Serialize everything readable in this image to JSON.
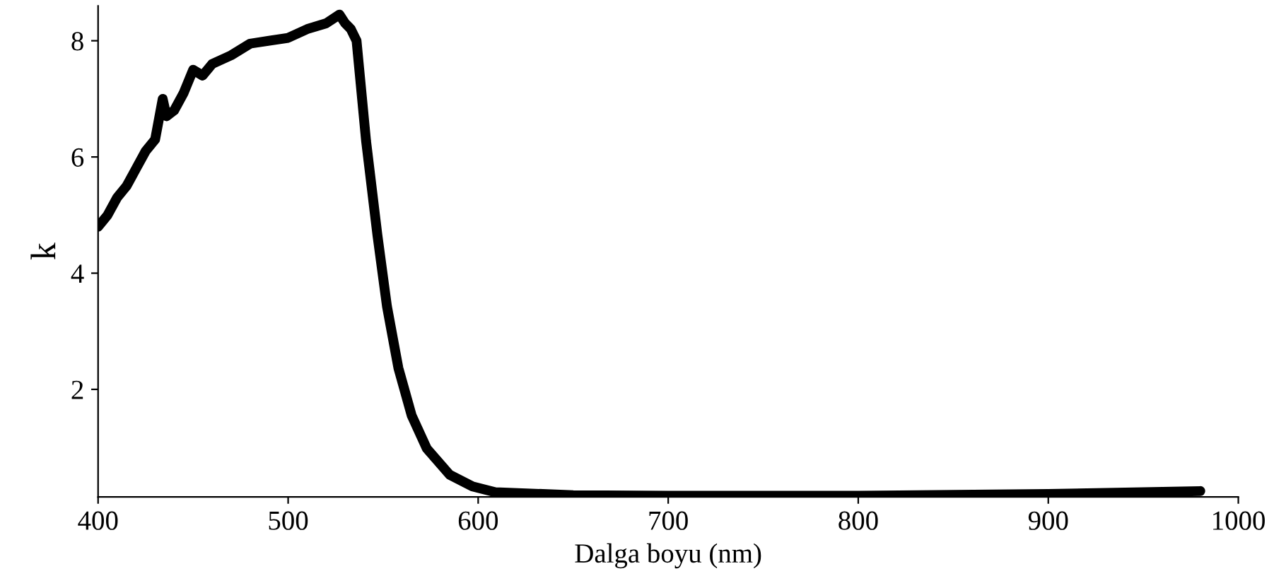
{
  "chart_data": {
    "type": "line",
    "xlabel": "Dalga boyu (nm)",
    "ylabel": "k",
    "xlim": [
      400,
      1000
    ],
    "xticks": [
      400,
      500,
      600,
      700,
      800,
      900,
      1000
    ],
    "ylim": [
      0.15,
      8.6
    ],
    "yticks": [
      2,
      4,
      6,
      8
    ],
    "grid": false,
    "legend": false,
    "marker": "none",
    "line_style": "solid",
    "series": [
      {
        "color": "#000000",
        "x": [
          400,
          405,
          410,
          415,
          420,
          425,
          430,
          434,
          436,
          440,
          445,
          450,
          455,
          460,
          470,
          480,
          490,
          500,
          510,
          520,
          527,
          530,
          533,
          536,
          541,
          547,
          552,
          558,
          565,
          573,
          585,
          597,
          609,
          650,
          700,
          800,
          900,
          980
        ],
        "values": [
          4.8,
          5.0,
          5.3,
          5.5,
          5.8,
          6.1,
          6.3,
          7.0,
          6.7,
          6.8,
          7.1,
          7.5,
          7.4,
          7.6,
          7.75,
          7.95,
          8.0,
          8.05,
          8.2,
          8.3,
          8.45,
          8.3,
          8.2,
          8.0,
          6.28,
          4.65,
          3.43,
          2.37,
          1.55,
          0.98,
          0.53,
          0.33,
          0.23,
          0.18,
          0.17,
          0.17,
          0.2,
          0.25
        ]
      }
    ]
  }
}
